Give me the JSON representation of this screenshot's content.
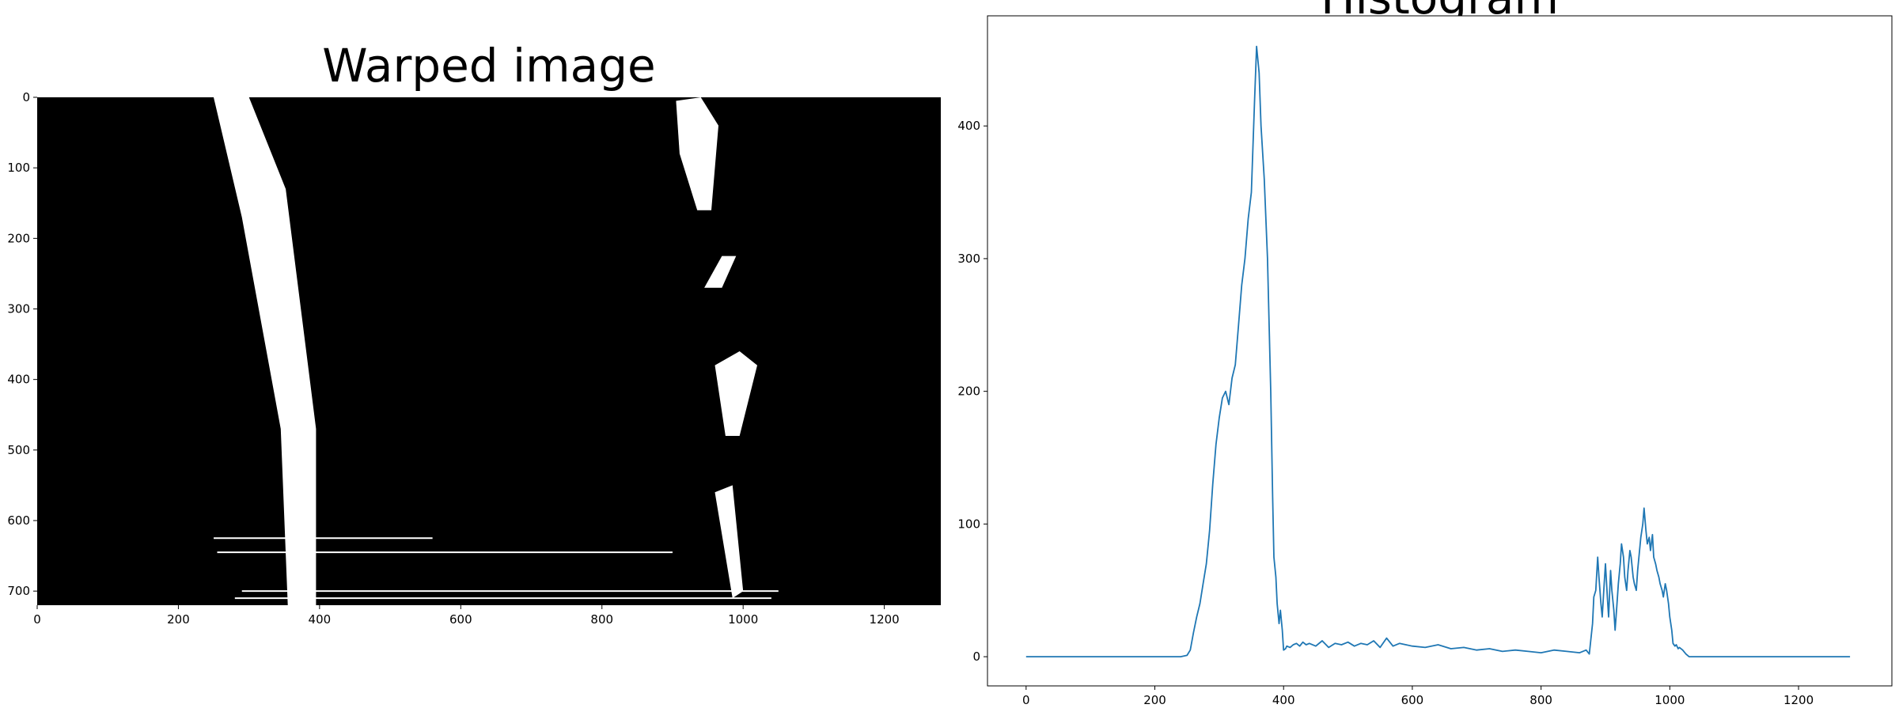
{
  "chart_data": [
    {
      "type": "image",
      "title": "Warped image",
      "xlabel": "",
      "ylabel": "",
      "xlim": [
        0,
        1280
      ],
      "ylim": [
        720,
        0
      ],
      "xticks": [
        0,
        200,
        400,
        600,
        800,
        1000,
        1200
      ],
      "yticks": [
        0,
        100,
        200,
        300,
        400,
        500,
        600,
        700
      ],
      "colors": {
        "background": "#000000",
        "foreground": "#ffffff"
      },
      "left_lane_outline": [
        [
          250,
          0
        ],
        [
          300,
          0
        ],
        [
          352,
          130
        ],
        [
          395,
          470
        ],
        [
          395,
          720
        ],
        [
          355,
          720
        ],
        [
          345,
          470
        ],
        [
          290,
          170
        ]
      ],
      "right_lane_segments": [
        [
          [
            905,
            5
          ],
          [
            940,
            0
          ],
          [
            965,
            40
          ],
          [
            955,
            160
          ],
          [
            935,
            160
          ],
          [
            910,
            80
          ]
        ],
        [
          [
            945,
            270
          ],
          [
            970,
            225
          ],
          [
            990,
            225
          ],
          [
            970,
            270
          ]
        ],
        [
          [
            960,
            380
          ],
          [
            995,
            360
          ],
          [
            1020,
            380
          ],
          [
            995,
            480
          ],
          [
            975,
            480
          ]
        ],
        [
          [
            960,
            560
          ],
          [
            985,
            550
          ],
          [
            1000,
            700
          ],
          [
            985,
            710
          ]
        ]
      ],
      "horizontal_streaks": [
        {
          "y": 625,
          "x0": 250,
          "x1": 560
        },
        {
          "y": 645,
          "x0": 255,
          "x1": 900
        },
        {
          "y": 700,
          "x0": 290,
          "x1": 1050
        },
        {
          "y": 710,
          "x0": 280,
          "x1": 1040
        }
      ]
    },
    {
      "type": "line",
      "title": "Histogram",
      "xlabel": "",
      "ylabel": "",
      "xlim": [
        -60,
        1345
      ],
      "ylim": [
        -22,
        483
      ],
      "xticks": [
        0,
        200,
        400,
        600,
        800,
        1000,
        1200
      ],
      "yticks": [
        0,
        100,
        200,
        300,
        400
      ],
      "grid": false,
      "series": [
        {
          "color": "#1f77b4",
          "x": [
            0,
            240,
            250,
            255,
            260,
            265,
            270,
            275,
            280,
            285,
            290,
            295,
            300,
            305,
            310,
            315,
            320,
            325,
            330,
            335,
            340,
            345,
            350,
            355,
            358,
            362,
            365,
            370,
            375,
            380,
            383,
            385,
            388,
            390,
            393,
            395,
            398,
            400,
            403,
            405,
            410,
            415,
            420,
            425,
            430,
            435,
            440,
            450,
            460,
            470,
            480,
            490,
            500,
            510,
            520,
            530,
            540,
            550,
            560,
            570,
            580,
            590,
            600,
            620,
            640,
            660,
            680,
            700,
            720,
            740,
            760,
            780,
            800,
            820,
            840,
            860,
            870,
            875,
            880,
            882,
            885,
            888,
            890,
            893,
            895,
            898,
            900,
            903,
            905,
            908,
            910,
            913,
            915,
            918,
            920,
            923,
            925,
            928,
            930,
            933,
            935,
            938,
            940,
            943,
            945,
            948,
            950,
            953,
            955,
            958,
            960,
            963,
            965,
            968,
            970,
            973,
            975,
            978,
            980,
            983,
            985,
            988,
            990,
            993,
            995,
            998,
            1000,
            1003,
            1005,
            1008,
            1010,
            1013,
            1015,
            1020,
            1025,
            1030,
            1035,
            1040,
            1045,
            1050,
            1100,
            1200,
            1280
          ],
          "y": [
            0,
            0,
            1,
            5,
            18,
            30,
            40,
            55,
            70,
            95,
            130,
            160,
            180,
            195,
            200,
            190,
            210,
            220,
            250,
            280,
            300,
            330,
            350,
            420,
            460,
            440,
            400,
            360,
            300,
            200,
            120,
            75,
            60,
            40,
            25,
            35,
            20,
            5,
            6,
            8,
            7,
            9,
            10,
            8,
            11,
            9,
            10,
            8,
            12,
            7,
            10,
            9,
            11,
            8,
            10,
            9,
            12,
            7,
            14,
            8,
            10,
            9,
            8,
            7,
            9,
            6,
            7,
            5,
            6,
            4,
            5,
            4,
            3,
            5,
            4,
            3,
            5,
            2,
            25,
            45,
            50,
            75,
            60,
            40,
            30,
            55,
            70,
            45,
            30,
            65,
            50,
            35,
            20,
            40,
            55,
            70,
            85,
            75,
            60,
            50,
            65,
            80,
            75,
            60,
            55,
            50,
            65,
            80,
            90,
            100,
            112,
            95,
            85,
            90,
            80,
            92,
            75,
            70,
            65,
            60,
            55,
            50,
            45,
            55,
            50,
            40,
            30,
            20,
            10,
            8,
            9,
            6,
            7,
            5,
            2,
            0,
            0,
            0,
            0,
            0,
            0,
            0,
            0
          ]
        }
      ]
    }
  ]
}
